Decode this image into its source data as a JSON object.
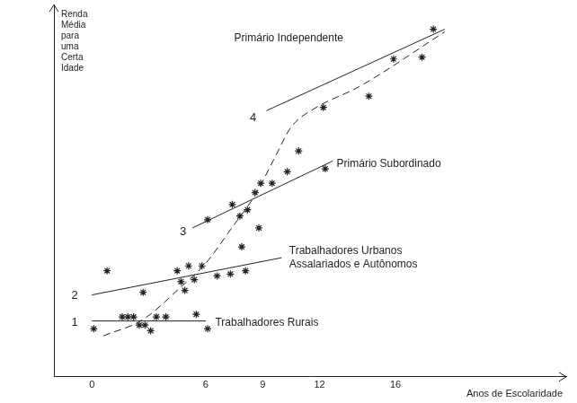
{
  "chart_data": {
    "type": "scatter",
    "xlabel": "Anos de Escolaridade",
    "ylabel": "Renda Média para uma Certa Idade",
    "xlim": [
      -2,
      25
    ],
    "xticks": [
      0,
      6,
      9,
      12,
      16
    ],
    "ylim": [
      0,
      100
    ],
    "grid": false,
    "tick_labels": "x",
    "series": [
      {
        "type": "scatter",
        "marker": "star",
        "color": "#222222",
        "x": [
          0.1,
          0.8,
          1.6,
          1.9,
          2.2,
          2.5,
          2.8,
          3.1,
          3.4,
          3.9,
          5.5,
          6.1,
          2.7,
          4.5,
          4.7,
          4.9,
          5.1,
          5.4,
          5.8,
          6.6,
          7.3,
          8.1,
          6.1,
          7.4,
          7.8,
          7.9,
          8.2,
          8.6,
          8.8,
          8.9,
          9.5,
          10.3,
          10.9,
          12.3,
          12.2,
          14.6,
          15.9,
          17.4,
          18.0
        ],
        "values": [
          12.9,
          28.5,
          16.1,
          16.1,
          16.1,
          13.9,
          13.9,
          12.4,
          16.1,
          16.1,
          16.8,
          12.9,
          22.7,
          28.5,
          25.6,
          23.2,
          29.8,
          26.1,
          29.8,
          27.1,
          27.6,
          28.5,
          42.2,
          46.3,
          43.2,
          34.9,
          44.9,
          49.5,
          40.0,
          52.0,
          52.0,
          55.1,
          60.7,
          55.9,
          72.4,
          75.4,
          85.4,
          85.9,
          93.4
        ]
      },
      {
        "type": "line",
        "name": "Trabalhadores Rurais",
        "color": "#222222",
        "line_style": "solid",
        "x": [
          0,
          6
        ],
        "values": [
          15,
          15
        ],
        "label_x": 6.5,
        "label_y": 14.6
      },
      {
        "type": "line",
        "name": "Trabalhadores Urbanos\nAssalariados e Autônomos",
        "color": "#222222",
        "line_style": "solid",
        "x": [
          0,
          10
        ],
        "values": [
          22,
          32
        ],
        "label_x": 10.4,
        "label_y": 32
      },
      {
        "type": "line",
        "name": "Primário Subordinado",
        "color": "#222222",
        "line_style": "solid",
        "x": [
          5.3,
          12.7
        ],
        "values": [
          40,
          58
        ],
        "label_x": 12.9,
        "label_y": 57.3
      },
      {
        "type": "line",
        "name": "Primário Independente",
        "color": "#222222",
        "line_style": "solid",
        "x": [
          9.2,
          18.6
        ],
        "values": [
          71.5,
          93.4
        ],
        "label_x": 7.5,
        "label_y": 91
      },
      {
        "type": "line",
        "color": "#222222",
        "line_style": "dashed",
        "x": [
          0.6,
          2.7,
          4.6,
          6.0,
          7.4,
          8.6,
          9.6,
          10.5,
          11.7,
          14.1,
          18.6
        ],
        "values": [
          11,
          15.4,
          23.7,
          30.5,
          40.2,
          48.8,
          58.5,
          67.1,
          72,
          78,
          92.7
        ]
      }
    ],
    "annotations": [
      {
        "text": "1",
        "x": -0.9,
        "y": 14.6
      },
      {
        "text": "2",
        "x": -0.9,
        "y": 21.7
      },
      {
        "text": "3",
        "x": 4.8,
        "y": 39
      },
      {
        "text": "4",
        "x": 8.5,
        "y": 69.5
      }
    ]
  }
}
